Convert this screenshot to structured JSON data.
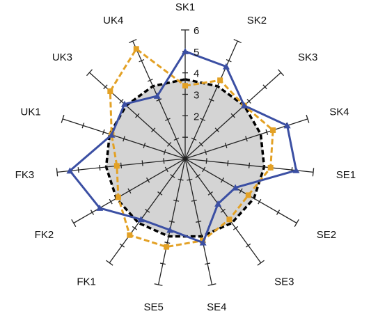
{
  "chart_data": {
    "type": "radar",
    "categories": [
      "SK1",
      "SK2",
      "SK3",
      "SK4",
      "SE1",
      "SE2",
      "SE3",
      "SE4",
      "SE5",
      "FK1",
      "FK2",
      "FK3",
      "UK1",
      "UK3",
      "UK4"
    ],
    "radial_ticks": [
      "2",
      "3",
      "4",
      "5",
      "6"
    ],
    "rlim": [
      0,
      6
    ],
    "grid": "spokes with tick marks",
    "series": [
      {
        "style": "grey filled area, black dashed outline",
        "color": "#000000",
        "fill": "#d4d4d4",
        "values": [
          3.7,
          3.7,
          3.7,
          3.7,
          3.7,
          3.7,
          3.7,
          3.7,
          3.7,
          3.7,
          3.7,
          3.7,
          3.7,
          3.7,
          3.7
        ]
      },
      {
        "style": "orange dashed line, square markers",
        "color": "#e3a125",
        "values": [
          3.4,
          4.0,
          3.7,
          4.3,
          4.0,
          3.4,
          3.5,
          3.9,
          4.2,
          4.4,
          3.6,
          3.2,
          3.6,
          4.7,
          5.6
        ]
      },
      {
        "style": "blue solid line, triangle markers",
        "color": "#3b4fa3",
        "values": [
          5.0,
          4.7,
          3.7,
          5.0,
          5.2,
          2.7,
          2.6,
          4.0,
          3.4,
          3.5,
          4.6,
          5.4,
          3.6,
          3.8,
          3.2
        ]
      }
    ]
  }
}
